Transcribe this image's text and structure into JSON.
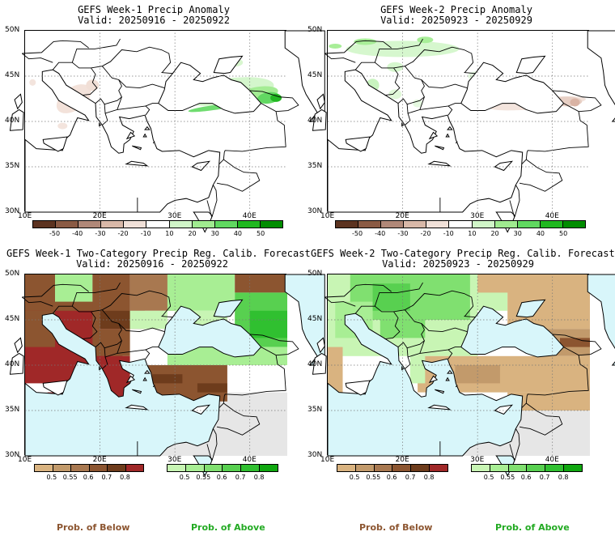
{
  "panels": [
    {
      "title": "GEFS Week-1 Precip Anomaly",
      "subtitle": "Valid: 20250916 - 20250922",
      "kind": "anomaly"
    },
    {
      "title": "GEFS Week-2 Precip Anomaly",
      "subtitle": "Valid: 20250923 - 20250929",
      "kind": "anomaly"
    },
    {
      "title": "GEFS Week-1 Two-Category Precip Reg. Calib. Forecast",
      "subtitle": "Valid: 20250916 - 20250922",
      "kind": "probability"
    },
    {
      "title": "GEFS Week-2 Two-Category Precip Reg. Calib. Forecast",
      "subtitle": "Valid: 20250923 - 20250929",
      "kind": "probability"
    }
  ],
  "axes": {
    "lat_labels": [
      "50N",
      "45N",
      "40N",
      "35N",
      "30N"
    ],
    "lon_labels": [
      "10E",
      "20E",
      "30E",
      "40E"
    ]
  },
  "anomaly_colorbar": {
    "labels": [
      "-50",
      "-40",
      "-30",
      "-20",
      "-10",
      "10",
      "20",
      "30",
      "40",
      "50"
    ],
    "colors": [
      "#5c3320",
      "#8a5a44",
      "#b08878",
      "#d8b8a8",
      "#f0e0d8",
      "#ffffff",
      "#d0f5c8",
      "#a0eb90",
      "#60d860",
      "#20b820",
      "#008c00"
    ]
  },
  "below_colorbar": {
    "labels": [
      "0.5",
      "0.55",
      "0.6",
      "0.7",
      "0.8"
    ],
    "colors": [
      "#d9b380",
      "#c29a6b",
      "#a87850",
      "#8c5530",
      "#6e3c1c",
      "#a02828"
    ]
  },
  "above_colorbar": {
    "labels": [
      "0.5",
      "0.55",
      "0.6",
      "0.7",
      "0.8"
    ],
    "colors": [
      "#c8f5b4",
      "#a8ee94",
      "#80e070",
      "#58d050",
      "#30c030",
      "#10a810"
    ]
  },
  "footer": {
    "below_label": "Prob. of Below",
    "above_label": "Prob. of Above",
    "below_color": "#8c5530",
    "above_color": "#22aa22"
  },
  "map_colors": {
    "sea_prob": "#d8f6fa",
    "no_data": "#e6e6e6"
  }
}
